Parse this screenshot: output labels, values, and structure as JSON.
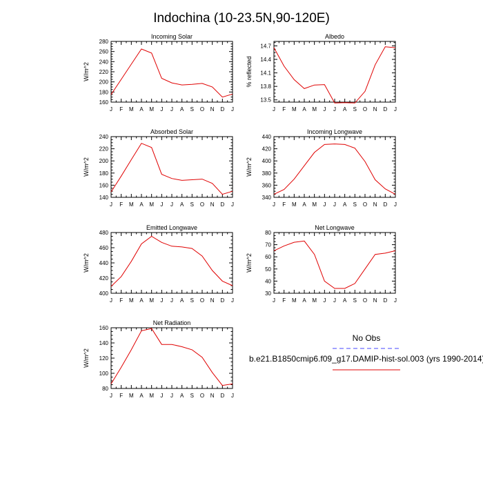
{
  "figure": {
    "title": "Indochina (10-23.5N,90-120E)"
  },
  "legend": {
    "obs_label": "No Obs",
    "obs_color": "#4444ff",
    "model_label": "b.e21.B1850cmip6.f09_g17.DAMIP-hist-sol.003 (yrs 1990-2014)",
    "model_color": "#e00000"
  },
  "chart_data": [
    {
      "type": "line",
      "title": "Incoming Solar",
      "ylabel": "W/m^2",
      "x": [
        "J",
        "F",
        "M",
        "A",
        "M",
        "J",
        "J",
        "A",
        "S",
        "O",
        "N",
        "D",
        "J"
      ],
      "ylim": [
        160,
        280
      ],
      "yticks": [
        160,
        180,
        200,
        220,
        240,
        260,
        280
      ],
      "series": [
        {
          "values": [
            175,
            205,
            235,
            265,
            257,
            207,
            198,
            194,
            195,
            197,
            190,
            170,
            176
          ]
        }
      ]
    },
    {
      "type": "line",
      "title": "Albedo",
      "ylabel": "% reflected",
      "x": [
        "J",
        "F",
        "M",
        "A",
        "M",
        "J",
        "J",
        "A",
        "S",
        "O",
        "N",
        "D",
        "J"
      ],
      "ylim": [
        13.45,
        14.8
      ],
      "yticks": [
        13.5,
        13.8,
        14.1,
        14.4,
        14.7
      ],
      "series": [
        {
          "values": [
            14.66,
            14.25,
            13.95,
            13.75,
            13.83,
            13.84,
            13.43,
            13.44,
            13.43,
            13.69,
            14.28,
            14.68,
            14.66
          ]
        }
      ]
    },
    {
      "type": "line",
      "title": "Absorbed Solar",
      "ylabel": "W/m^2",
      "x": [
        "J",
        "F",
        "M",
        "A",
        "M",
        "J",
        "J",
        "A",
        "S",
        "O",
        "N",
        "D",
        "J"
      ],
      "ylim": [
        140,
        240
      ],
      "yticks": [
        140,
        160,
        180,
        200,
        220,
        240
      ],
      "series": [
        {
          "values": [
            149,
            175,
            202,
            229,
            222,
            178,
            171,
            168,
            169,
            170,
            163,
            145,
            150
          ]
        }
      ]
    },
    {
      "type": "line",
      "title": "Incoming Longwave",
      "ylabel": "W/m^2",
      "x": [
        "J",
        "F",
        "M",
        "A",
        "M",
        "J",
        "J",
        "A",
        "S",
        "O",
        "N",
        "D",
        "J"
      ],
      "ylim": [
        340,
        440
      ],
      "yticks": [
        340,
        360,
        380,
        400,
        420,
        440
      ],
      "series": [
        {
          "values": [
            345,
            353,
            370,
            392,
            414,
            427,
            428,
            427,
            421,
            399,
            369,
            354,
            345
          ]
        }
      ]
    },
    {
      "type": "line",
      "title": "Emitted Longwave",
      "ylabel": "W/m^2",
      "x": [
        "J",
        "F",
        "M",
        "A",
        "M",
        "J",
        "J",
        "A",
        "S",
        "O",
        "N",
        "D",
        "J"
      ],
      "ylim": [
        400,
        480
      ],
      "yticks": [
        400,
        420,
        440,
        460,
        480
      ],
      "series": [
        {
          "values": [
            409,
            422,
            442,
            465,
            475,
            467,
            462,
            461,
            459,
            449,
            430,
            416,
            410
          ]
        }
      ]
    },
    {
      "type": "line",
      "title": "Net Longwave",
      "ylabel": "W/m^2",
      "x": [
        "J",
        "F",
        "M",
        "A",
        "M",
        "J",
        "J",
        "A",
        "S",
        "O",
        "N",
        "D",
        "J"
      ],
      "ylim": [
        30,
        80
      ],
      "yticks": [
        30,
        40,
        50,
        60,
        70,
        80
      ],
      "series": [
        {
          "values": [
            65,
            69,
            72,
            73,
            62,
            40,
            34,
            34,
            38,
            50,
            62,
            63,
            65
          ]
        }
      ]
    },
    {
      "type": "line",
      "title": "Net Radiation",
      "ylabel": "W/m^2",
      "x": [
        "J",
        "F",
        "M",
        "A",
        "M",
        "J",
        "J",
        "A",
        "S",
        "O",
        "N",
        "D",
        "J"
      ],
      "ylim": [
        80,
        160
      ],
      "yticks": [
        80,
        100,
        120,
        140,
        160
      ],
      "series": [
        {
          "values": [
            86,
            108,
            131,
            156,
            159,
            138,
            138,
            135,
            131,
            121,
            101,
            84,
            86
          ]
        }
      ]
    }
  ]
}
